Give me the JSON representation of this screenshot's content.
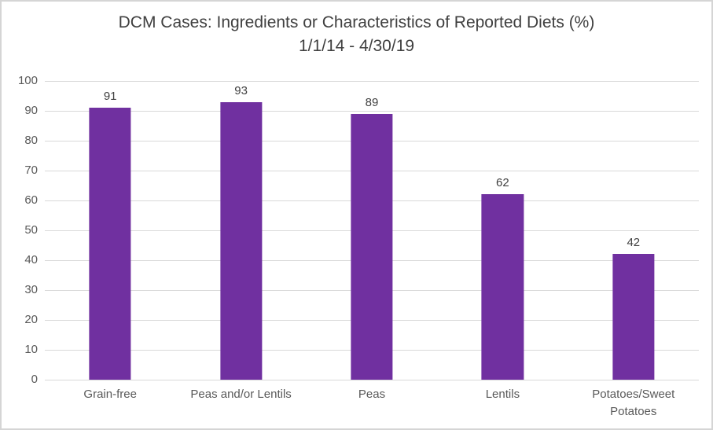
{
  "chart_data": {
    "type": "bar",
    "title": "DCM Cases: Ingredients or Characteristics of Reported Diets (%)",
    "subtitle": "1/1/14 - 4/30/19",
    "categories": [
      "Grain-free",
      "Peas and/or Lentils",
      "Peas",
      "Lentils",
      "Potatoes/Sweet\nPotatoes"
    ],
    "values": [
      91,
      93,
      89,
      62,
      42
    ],
    "xlabel": "",
    "ylabel": "",
    "ylim": [
      0,
      100
    ],
    "yticks": [
      0,
      10,
      20,
      30,
      40,
      50,
      60,
      70,
      80,
      90,
      100
    ],
    "grid": true,
    "legend": "none",
    "data_labels": true,
    "colors": {
      "bar": "#7030A0",
      "gridline": "#d9d9d9",
      "axis_text": "#595959",
      "title_text": "#404040",
      "data_label_text": "#404040",
      "frame_border": "#d5d5d5",
      "background": "#ffffff"
    }
  }
}
